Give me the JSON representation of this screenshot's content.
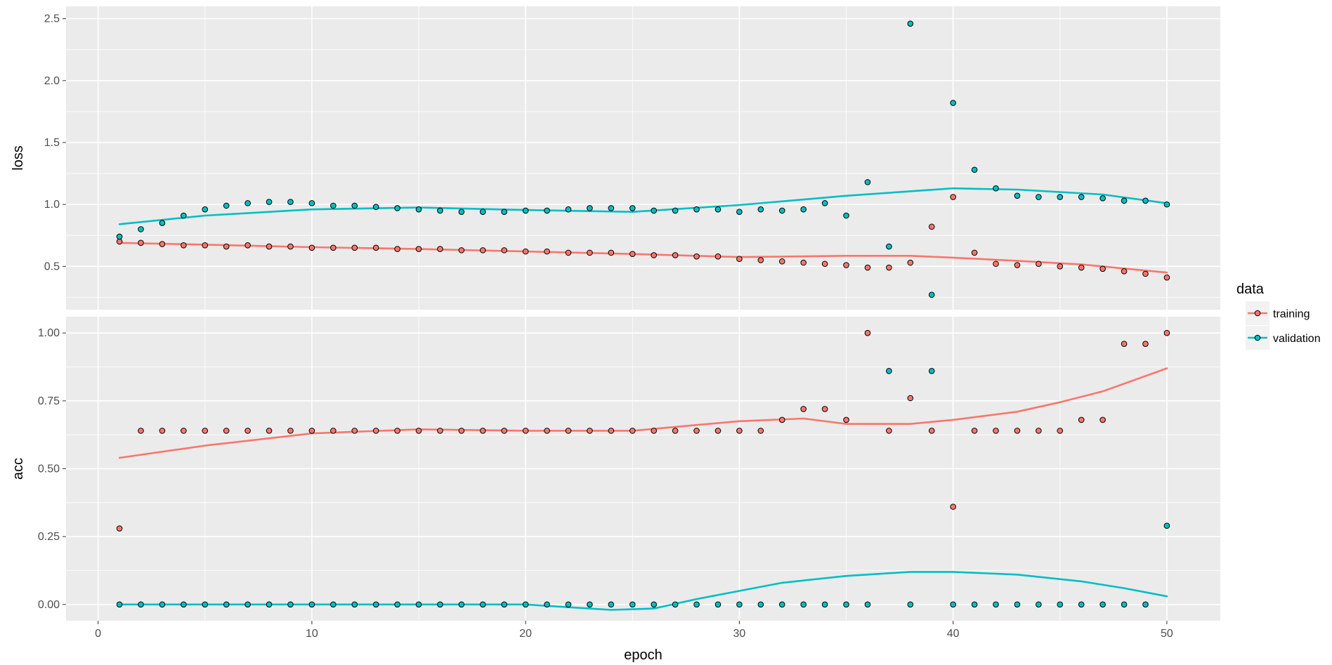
{
  "colors": {
    "training": "#F8766D",
    "validation": "#00BFC4",
    "panel_bg": "#EBEBEB",
    "grid": "#FFFFFF",
    "point_edge": "#000000"
  },
  "legend": {
    "title": "data",
    "position": "right",
    "items": [
      {
        "label": "training",
        "color_key": "training"
      },
      {
        "label": "validation",
        "color_key": "validation"
      }
    ]
  },
  "chart_data": {
    "type": "scatter",
    "faceted": true,
    "shared_x": true,
    "xlabel": "epoch",
    "xlim": [
      -1.5,
      52.5
    ],
    "x_ticks": [
      0,
      10,
      20,
      30,
      40,
      50
    ],
    "x_tick_labels": [
      "0",
      "10",
      "20",
      "30",
      "40",
      "50"
    ],
    "grid": true,
    "panels": [
      {
        "name": "loss",
        "ylabel": "loss",
        "ylim": [
          0.15,
          2.6
        ],
        "y_ticks": [
          0.5,
          1.0,
          1.5,
          2.0,
          2.5
        ],
        "y_tick_labels": [
          "0.5",
          "1.0",
          "1.5",
          "2.0",
          "2.5"
        ],
        "series": [
          {
            "name": "training",
            "points": [
              0.7,
              0.69,
              0.68,
              0.67,
              0.67,
              0.66,
              0.67,
              0.66,
              0.66,
              0.65,
              0.65,
              0.65,
              0.65,
              0.64,
              0.64,
              0.64,
              0.63,
              0.63,
              0.63,
              0.62,
              0.62,
              0.61,
              0.61,
              0.61,
              0.6,
              0.59,
              0.59,
              0.58,
              0.58,
              0.56,
              0.55,
              0.54,
              0.53,
              0.52,
              0.51,
              0.49,
              0.49,
              0.53,
              0.82,
              1.06,
              0.61,
              0.52,
              0.51,
              0.52,
              0.5,
              0.49,
              0.48,
              0.46,
              0.44,
              0.41
            ],
            "smooth": [
              [
                1,
                0.69
              ],
              [
                5,
                0.675
              ],
              [
                10,
                0.655
              ],
              [
                15,
                0.64
              ],
              [
                20,
                0.62
              ],
              [
                25,
                0.6
              ],
              [
                30,
                0.575
              ],
              [
                35,
                0.585
              ],
              [
                38,
                0.585
              ],
              [
                40,
                0.57
              ],
              [
                43,
                0.545
              ],
              [
                46,
                0.515
              ],
              [
                50,
                0.45
              ]
            ]
          },
          {
            "name": "validation",
            "points": [
              0.74,
              0.8,
              0.85,
              0.91,
              0.96,
              0.99,
              1.01,
              1.02,
              1.02,
              1.01,
              0.99,
              0.99,
              0.98,
              0.97,
              0.96,
              0.95,
              0.94,
              0.94,
              0.94,
              0.95,
              0.95,
              0.96,
              0.97,
              0.97,
              0.97,
              0.95,
              0.95,
              0.96,
              0.96,
              0.94,
              0.96,
              0.95,
              0.96,
              1.01,
              0.91,
              1.18,
              0.66,
              2.46,
              0.27,
              1.82,
              1.28,
              1.13,
              1.07,
              1.06,
              1.06,
              1.06,
              1.05,
              1.03,
              1.03,
              1.0
            ],
            "smooth": [
              [
                1,
                0.84
              ],
              [
                5,
                0.91
              ],
              [
                10,
                0.96
              ],
              [
                15,
                0.975
              ],
              [
                20,
                0.955
              ],
              [
                25,
                0.94
              ],
              [
                30,
                0.995
              ],
              [
                35,
                1.07
              ],
              [
                40,
                1.13
              ],
              [
                43,
                1.12
              ],
              [
                47,
                1.08
              ],
              [
                50,
                1.01
              ]
            ]
          }
        ]
      },
      {
        "name": "acc",
        "ylabel": "acc",
        "ylim": [
          -0.06,
          1.06
        ],
        "y_ticks": [
          0.0,
          0.25,
          0.5,
          0.75,
          1.0
        ],
        "y_tick_labels": [
          "0.00",
          "0.25",
          "0.50",
          "0.75",
          "1.00"
        ],
        "series": [
          {
            "name": "training",
            "points": [
              0.28,
              0.64,
              0.64,
              0.64,
              0.64,
              0.64,
              0.64,
              0.64,
              0.64,
              0.64,
              0.64,
              0.64,
              0.64,
              0.64,
              0.64,
              0.64,
              0.64,
              0.64,
              0.64,
              0.64,
              0.64,
              0.64,
              0.64,
              0.64,
              0.64,
              0.64,
              0.64,
              0.64,
              0.64,
              0.64,
              0.64,
              0.68,
              0.72,
              0.72,
              0.68,
              1.0,
              0.64,
              0.76,
              0.64,
              0.36,
              0.64,
              0.64,
              0.64,
              0.64,
              0.64,
              0.68,
              0.68,
              0.96,
              0.96,
              1.0
            ],
            "smooth": [
              [
                1,
                0.54
              ],
              [
                5,
                0.585
              ],
              [
                10,
                0.63
              ],
              [
                15,
                0.645
              ],
              [
                20,
                0.64
              ],
              [
                25,
                0.64
              ],
              [
                30,
                0.675
              ],
              [
                33,
                0.685
              ],
              [
                35,
                0.665
              ],
              [
                38,
                0.665
              ],
              [
                40,
                0.68
              ],
              [
                43,
                0.71
              ],
              [
                45,
                0.745
              ],
              [
                47,
                0.785
              ],
              [
                50,
                0.87
              ]
            ]
          },
          {
            "name": "validation",
            "points": [
              0,
              0,
              0,
              0,
              0,
              0,
              0,
              0,
              0,
              0,
              0,
              0,
              0,
              0,
              0,
              0,
              0,
              0,
              0,
              0,
              0,
              0,
              0,
              0,
              0,
              0,
              0,
              0,
              0,
              0,
              0,
              0,
              0,
              0,
              0,
              0,
              0.86,
              0,
              0.86,
              0,
              0,
              0,
              0,
              0,
              0,
              0,
              0,
              0,
              0,
              0.29
            ],
            "smooth": [
              [
                1,
                0
              ],
              [
                10,
                0
              ],
              [
                20,
                0
              ],
              [
                22,
                -0.01
              ],
              [
                24,
                -0.02
              ],
              [
                26,
                -0.015
              ],
              [
                28,
                0.02
              ],
              [
                30,
                0.05
              ],
              [
                32,
                0.08
              ],
              [
                35,
                0.105
              ],
              [
                38,
                0.12
              ],
              [
                40,
                0.12
              ],
              [
                43,
                0.11
              ],
              [
                46,
                0.085
              ],
              [
                48,
                0.06
              ],
              [
                50,
                0.03
              ]
            ]
          }
        ]
      }
    ]
  }
}
